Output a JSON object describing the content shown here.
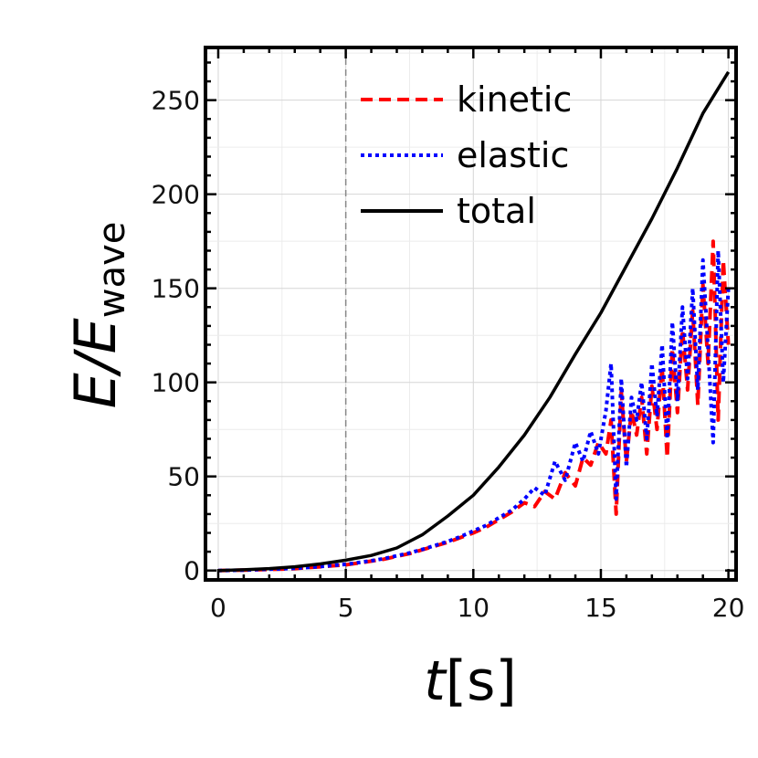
{
  "chart_data": {
    "type": "line",
    "title": "",
    "xlabel": "t[s]",
    "xlabel_italic": "t",
    "xlabel_rest": "[s]",
    "ylabel_main": "E/E",
    "ylabel_sub": "wave",
    "xlim": [
      -0.5,
      20.3
    ],
    "ylim": [
      -5,
      278
    ],
    "xticks": [
      0,
      5,
      10,
      15,
      20
    ],
    "yticks": [
      0,
      50,
      100,
      150,
      200,
      250
    ],
    "xtick_labels": [
      "0",
      "5",
      "10",
      "15",
      "20"
    ],
    "ytick_labels": [
      "0",
      "50",
      "100",
      "150",
      "200",
      "250"
    ],
    "grid": true,
    "reference_line_x": 5,
    "legend_position": "top-center",
    "series": [
      {
        "name": "kinetic",
        "color": "#ff0000",
        "style": "dashed",
        "x": [
          0,
          0.5,
          1,
          1.5,
          2,
          2.5,
          3,
          3.5,
          4,
          4.5,
          5,
          5.5,
          6,
          6.5,
          7,
          7.5,
          8,
          8.5,
          9,
          9.5,
          10,
          10.5,
          11,
          11.5,
          12,
          12.4,
          12.8,
          13.2,
          13.6,
          14,
          14.3,
          14.6,
          14.9,
          15.2,
          15.4,
          15.6,
          15.8,
          16,
          16.2,
          16.4,
          16.6,
          16.8,
          17,
          17.2,
          17.4,
          17.6,
          17.8,
          18,
          18.2,
          18.4,
          18.6,
          18.8,
          19,
          19.2,
          19.4,
          19.6,
          19.8,
          20
        ],
        "values": [
          0,
          0.1,
          0.2,
          0.4,
          0.6,
          0.8,
          1,
          1.5,
          2,
          2.5,
          3,
          4,
          5,
          6,
          7.5,
          9,
          11,
          13,
          15,
          17.5,
          20,
          23,
          27,
          31,
          36,
          34,
          42,
          38,
          52,
          45,
          60,
          56,
          68,
          62,
          80,
          30,
          95,
          58,
          85,
          72,
          92,
          62,
          98,
          75,
          108,
          60,
          118,
          84,
          128,
          96,
          138,
          88,
          152,
          110,
          175,
          80,
          165,
          120
        ]
      },
      {
        "name": "elastic",
        "color": "#0000ff",
        "style": "dotted",
        "x": [
          0,
          0.5,
          1,
          1.5,
          2,
          2.5,
          3,
          3.5,
          4,
          4.5,
          5,
          5.5,
          6,
          6.5,
          7,
          7.5,
          8,
          8.5,
          9,
          9.5,
          10,
          10.5,
          11,
          11.5,
          12,
          12.4,
          12.8,
          13.2,
          13.6,
          14,
          14.3,
          14.6,
          14.9,
          15.2,
          15.4,
          15.6,
          15.8,
          16,
          16.2,
          16.4,
          16.6,
          16.8,
          17,
          17.2,
          17.4,
          17.6,
          17.8,
          18,
          18.2,
          18.4,
          18.6,
          18.8,
          19,
          19.2,
          19.4,
          19.6,
          19.8,
          20
        ],
        "values": [
          0,
          0.1,
          0.2,
          0.5,
          0.7,
          0.9,
          1.2,
          1.6,
          2.1,
          2.7,
          3.3,
          4.2,
          5.2,
          6.3,
          7.8,
          9.3,
          11.2,
          13.3,
          15.5,
          18,
          21,
          24,
          28,
          32,
          38,
          44,
          40,
          58,
          48,
          68,
          58,
          74,
          62,
          85,
          110,
          38,
          102,
          55,
          92,
          80,
          100,
          70,
          110,
          82,
          120,
          70,
          132,
          90,
          140,
          102,
          150,
          96,
          165,
          118,
          68,
          170,
          100,
          150
        ]
      },
      {
        "name": "total",
        "color": "#000000",
        "style": "solid",
        "x": [
          0,
          1,
          2,
          3,
          4,
          5,
          6,
          7,
          8,
          9,
          10,
          11,
          12,
          13,
          14,
          15,
          16,
          17,
          18,
          19,
          20
        ],
        "values": [
          0,
          0.4,
          1,
          2,
          3.5,
          5.5,
          8,
          12,
          19,
          29,
          40,
          55,
          72,
          92,
          115,
          137,
          162,
          187,
          214,
          243,
          265
        ]
      }
    ]
  }
}
